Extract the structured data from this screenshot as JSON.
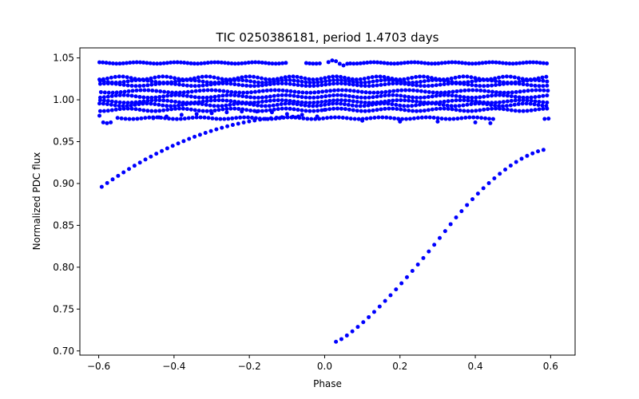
{
  "chart_data": {
    "type": "scatter",
    "title": "TIC 0250386181, period 1.4703 days",
    "xlabel": "Phase",
    "ylabel": "Normalized PDC flux",
    "xlim": [
      -0.65,
      0.665
    ],
    "ylim": [
      0.695,
      1.062
    ],
    "xticks": [
      -0.6,
      -0.4,
      -0.2,
      0.0,
      0.2,
      0.4,
      0.6
    ],
    "xtick_labels": [
      "−0.6",
      "−0.4",
      "−0.2",
      "0.0",
      "0.2",
      "0.4",
      "0.6"
    ],
    "yticks": [
      0.7,
      0.75,
      0.8,
      0.85,
      0.9,
      0.95,
      1.0,
      1.05
    ],
    "ytick_labels": [
      "0.70",
      "0.75",
      "0.80",
      "0.85",
      "0.90",
      "0.95",
      "1.00",
      "1.05"
    ],
    "grid": false,
    "marker_color": "#0000ff",
    "series": [
      {
        "values": [
          {
            "x": -0.598,
            "y": 0.981
          },
          {
            "x": -0.588,
            "y": 0.973
          },
          {
            "x": -0.578,
            "y": 0.972
          },
          {
            "x": -0.568,
            "y": 0.973
          },
          {
            "x": -0.455,
            "y": 0.978
          },
          {
            "x": -0.44,
            "y": 0.979
          },
          {
            "x": -0.42,
            "y": 0.98
          },
          {
            "x": -0.38,
            "y": 0.982
          },
          {
            "x": -0.34,
            "y": 0.983
          },
          {
            "x": -0.3,
            "y": 0.984
          },
          {
            "x": -0.26,
            "y": 0.985
          },
          {
            "x": -0.22,
            "y": 0.986
          },
          {
            "x": -0.18,
            "y": 0.986
          },
          {
            "x": -0.14,
            "y": 0.985
          },
          {
            "x": -0.1,
            "y": 0.983
          },
          {
            "x": -0.06,
            "y": 0.982
          },
          {
            "x": -0.02,
            "y": 0.98
          },
          {
            "x": 0.0,
            "y": 0.988
          },
          {
            "x": 0.01,
            "y": 1.045
          },
          {
            "x": 0.02,
            "y": 1.047
          },
          {
            "x": 0.03,
            "y": 1.046
          },
          {
            "x": 0.04,
            "y": 1.043
          },
          {
            "x": 0.05,
            "y": 1.041
          },
          {
            "x": 0.06,
            "y": 1.043
          },
          {
            "x": 0.1,
            "y": 0.975
          },
          {
            "x": 0.2,
            "y": 0.974
          },
          {
            "x": 0.3,
            "y": 0.974
          },
          {
            "x": 0.4,
            "y": 0.973
          },
          {
            "x": 0.44,
            "y": 0.972
          }
        ]
      }
    ]
  }
}
